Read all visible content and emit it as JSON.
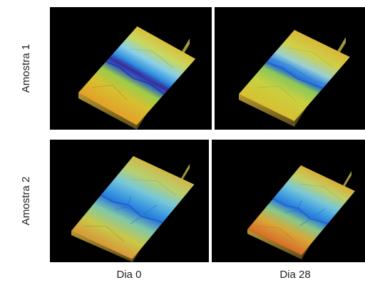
{
  "figure": {
    "rows": [
      {
        "label": "Amostra 1"
      },
      {
        "label": "Amostra 2"
      }
    ],
    "columns": [
      {
        "label": "Dia 0"
      },
      {
        "label": "Dia 28"
      }
    ],
    "panels": [
      {
        "row": "Amostra 1",
        "column": "Dia 0",
        "content": "3D surface topography map"
      },
      {
        "row": "Amostra 1",
        "column": "Dia 28",
        "content": "3D surface topography map"
      },
      {
        "row": "Amostra 2",
        "column": "Dia 0",
        "content": "3D surface topography map"
      },
      {
        "row": "Amostra 2",
        "column": "Dia 28",
        "content": "3D surface topography map"
      }
    ],
    "colors": {
      "panel_background": "#000000",
      "surface_high": "#e0a030",
      "surface_mid": "#c8d040",
      "surface_low": "#1a6ad8",
      "surface_deep": "#3a2a90"
    }
  }
}
